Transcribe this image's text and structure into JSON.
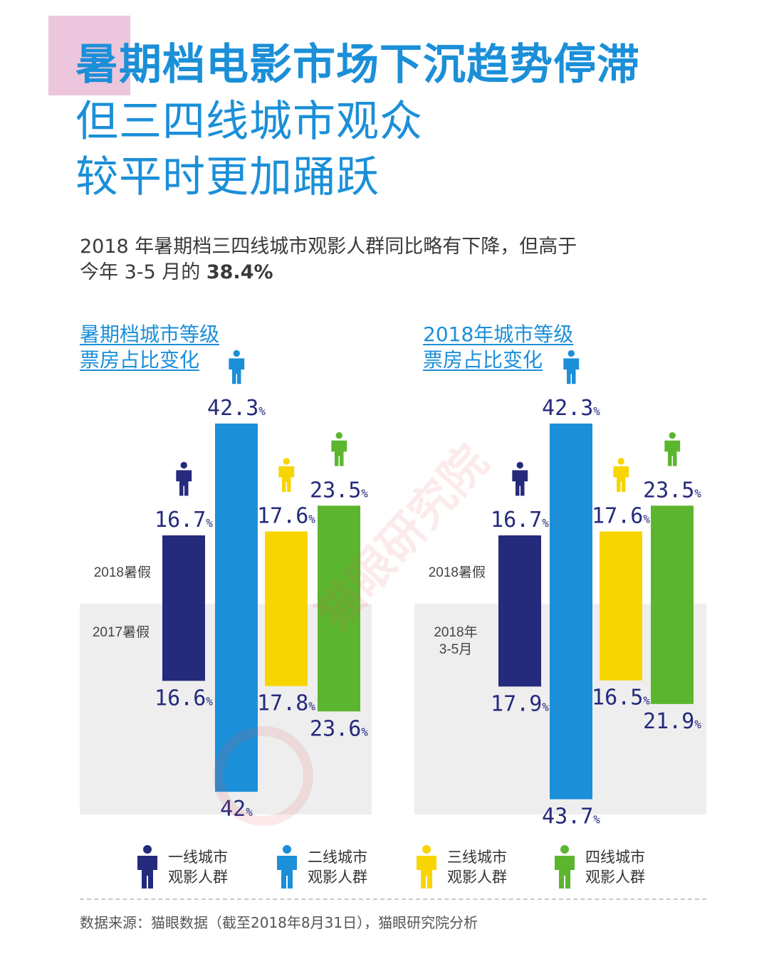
{
  "title": {
    "line1": "暑期档电影市场下沉趋势停滞",
    "line2": "但三四线城市观众",
    "line3": "较平时更加踊跃"
  },
  "subtitle": {
    "line1": "2018 年暑期档三四线城市观影人群同比略有下降，但高于",
    "line2_prefix": "今年 3-5 月的 ",
    "line2_value": "38.4%"
  },
  "colors": {
    "title": "#1b8fd8",
    "tier1": "#252a7c",
    "tier2": "#1b8fd8",
    "tier3": "#f7d500",
    "tier4": "#5cb52e",
    "panel_bg": "#eeeeef",
    "label": "#252a7c"
  },
  "legend": [
    {
      "icon": "person-icon",
      "line1": "一线城市",
      "line2": "观影人群"
    },
    {
      "icon": "person-icon",
      "line1": "二线城市",
      "line2": "观影人群"
    },
    {
      "icon": "person-icon",
      "line1": "三线城市",
      "line2": "观影人群"
    },
    {
      "icon": "person-icon",
      "line1": "四线城市",
      "line2": "观影人群"
    }
  ],
  "source": "数据来源：猫眼数据（截至2018年8月31日），猫眼研究院分析",
  "watermark": "猫眼研究院",
  "chart_data": [
    {
      "type": "bar",
      "title_line1": "暑期档城市等级",
      "title_line2": "票房占比变化",
      "categories": [
        "一线城市观影人群",
        "二线城市观影人群",
        "三线城市观影人群",
        "四线城市观影人群"
      ],
      "series": [
        {
          "name": "2018暑假",
          "values": [
            16.7,
            42.3,
            17.6,
            23.5
          ]
        },
        {
          "name": "2017暑假",
          "values": [
            16.6,
            42.0,
            17.8,
            23.6
          ]
        }
      ],
      "value_suffix": "%"
    },
    {
      "type": "bar",
      "title_line1": "2018年城市等级",
      "title_line2": "票房占比变化",
      "categories": [
        "一线城市观影人群",
        "二线城市观影人群",
        "三线城市观影人群",
        "四线城市观影人群"
      ],
      "series": [
        {
          "name": "2018暑假",
          "values": [
            16.7,
            42.3,
            17.6,
            23.5
          ]
        },
        {
          "name": "2018年3-5月",
          "label_lines": [
            "2018年",
            "3-5月"
          ],
          "values": [
            17.9,
            43.7,
            16.5,
            21.9
          ]
        }
      ],
      "value_suffix": "%"
    }
  ]
}
